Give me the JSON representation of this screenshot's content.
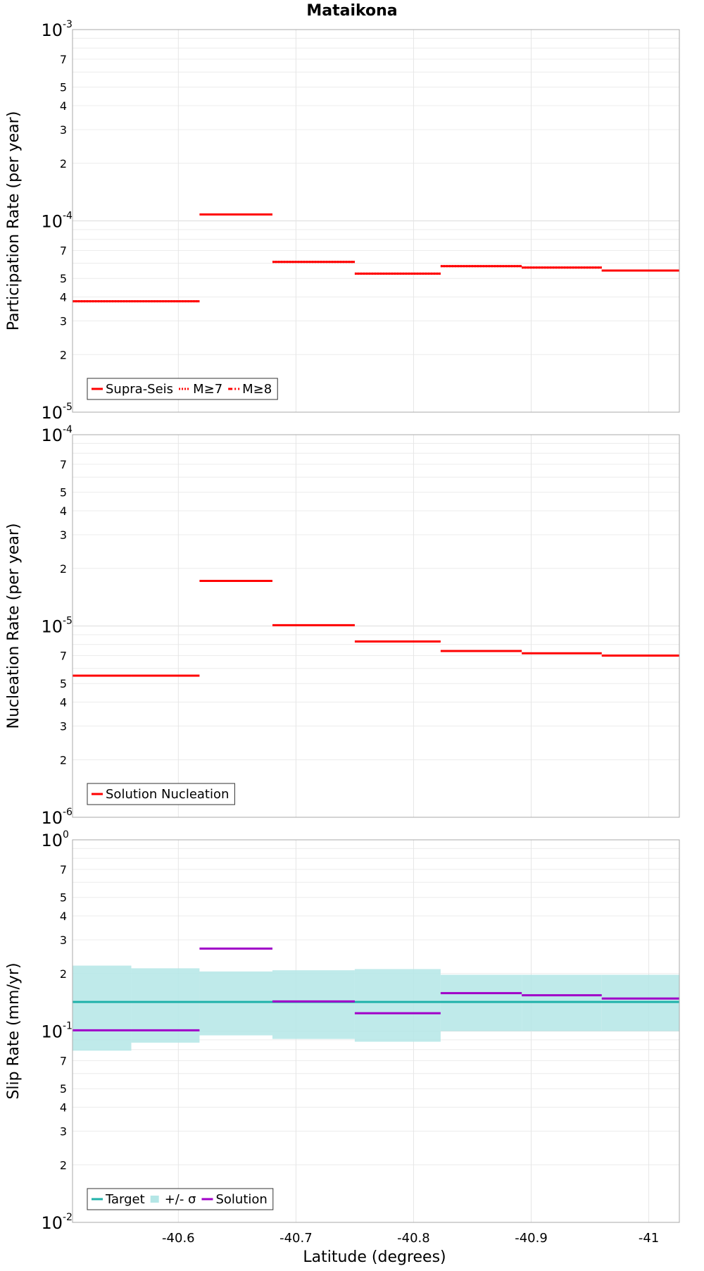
{
  "chart_data": {
    "title": "Mataikona",
    "type": "line",
    "xlabel": "Latitude (degrees)",
    "xlim": [
      -40.51,
      -41.026
    ],
    "x_ticks": [
      -40.6,
      -40.7,
      -40.8,
      -40.9,
      -41.0
    ],
    "x_tick_labels": [
      "-40.6",
      "-40.7",
      "-40.8",
      "-40.9",
      "-41"
    ],
    "grid": true,
    "panels": [
      {
        "name": "participation",
        "ylabel": "Participation Rate (per year)",
        "yscale": "log",
        "ylim": [
          1e-05,
          0.001
        ],
        "decades": [
          -5,
          -4,
          -3
        ],
        "legend": {
          "placement": "bottom-left",
          "entries": [
            {
              "label": "Supra-Seis",
              "color": "#ff0000",
              "style": "solid"
            },
            {
              "label": "M≥7",
              "color": "#ff0000",
              "style": "dotted"
            },
            {
              "label": "M≥8",
              "color": "#ff0000",
              "style": "dashdot"
            }
          ]
        },
        "series": [
          {
            "name": "Supra-Seis",
            "type": "step",
            "color": "#ff0000",
            "style": "solid",
            "segments": [
              {
                "x0": -40.51,
                "x1": -40.56,
                "y": 3.8e-05
              },
              {
                "x0": -40.56,
                "x1": -40.618,
                "y": 3.8e-05
              },
              {
                "x0": -40.618,
                "x1": -40.68,
                "y": 0.000108
              },
              {
                "x0": -40.68,
                "x1": -40.75,
                "y": 6.1e-05
              },
              {
                "x0": -40.75,
                "x1": -40.823,
                "y": 5.3e-05
              },
              {
                "x0": -40.823,
                "x1": -40.892,
                "y": 5.8e-05
              },
              {
                "x0": -40.892,
                "x1": -40.96,
                "y": 5.7e-05
              },
              {
                "x0": -40.96,
                "x1": -41.026,
                "y": 5.5e-05
              }
            ]
          },
          {
            "name": "M≥7",
            "type": "step",
            "color": "#ff0000",
            "style": "dotted",
            "segments": [
              {
                "x0": -40.51,
                "x1": -40.56,
                "y": 3.8e-05
              },
              {
                "x0": -40.56,
                "x1": -40.618,
                "y": 3.8e-05
              },
              {
                "x0": -40.68,
                "x1": -40.75,
                "y": 6.1e-05
              },
              {
                "x0": -40.75,
                "x1": -40.823,
                "y": 5.3e-05
              },
              {
                "x0": -40.823,
                "x1": -40.892,
                "y": 5.8e-05
              },
              {
                "x0": -40.892,
                "x1": -40.96,
                "y": 5.7e-05
              },
              {
                "x0": -40.96,
                "x1": -41.026,
                "y": 5.5e-05
              }
            ]
          }
        ]
      },
      {
        "name": "nucleation",
        "ylabel": "Nucleation Rate (per year)",
        "yscale": "log",
        "ylim": [
          1e-06,
          0.0001
        ],
        "decades": [
          -6,
          -5,
          -4
        ],
        "legend": {
          "placement": "bottom-left",
          "entries": [
            {
              "label": "Solution Nucleation",
              "color": "#ff0000",
              "style": "solid"
            }
          ]
        },
        "series": [
          {
            "name": "Solution Nucleation",
            "type": "step",
            "color": "#ff0000",
            "style": "solid",
            "segments": [
              {
                "x0": -40.51,
                "x1": -40.56,
                "y": 5.5e-06
              },
              {
                "x0": -40.56,
                "x1": -40.618,
                "y": 5.5e-06
              },
              {
                "x0": -40.618,
                "x1": -40.68,
                "y": 1.72e-05
              },
              {
                "x0": -40.68,
                "x1": -40.75,
                "y": 1.01e-05
              },
              {
                "x0": -40.75,
                "x1": -40.823,
                "y": 8.3e-06
              },
              {
                "x0": -40.823,
                "x1": -40.892,
                "y": 7.4e-06
              },
              {
                "x0": -40.892,
                "x1": -40.96,
                "y": 7.2e-06
              },
              {
                "x0": -40.96,
                "x1": -41.026,
                "y": 7e-06
              }
            ]
          }
        ]
      },
      {
        "name": "slip",
        "ylabel": "Slip Rate (mm/yr)",
        "yscale": "log",
        "ylim": [
          0.01,
          1
        ],
        "decades": [
          -2,
          -1,
          0
        ],
        "legend": {
          "placement": "bottom-left",
          "entries": [
            {
              "label": "Target",
              "color": "#20b2aa",
              "style": "solid"
            },
            {
              "label": "+/- σ",
              "color": "#b4e6e6",
              "style": "band"
            },
            {
              "label": "Solution",
              "color": "#a000c8",
              "style": "solid"
            }
          ]
        },
        "bands": [
          {
            "x0": -40.51,
            "x1": -40.56,
            "lo": 0.079,
            "hi": 0.22
          },
          {
            "x0": -40.56,
            "x1": -40.618,
            "lo": 0.087,
            "hi": 0.213
          },
          {
            "x0": -40.618,
            "x1": -40.68,
            "lo": 0.095,
            "hi": 0.205
          },
          {
            "x0": -40.68,
            "x1": -40.75,
            "lo": 0.091,
            "hi": 0.208
          },
          {
            "x0": -40.75,
            "x1": -40.823,
            "lo": 0.088,
            "hi": 0.211
          },
          {
            "x0": -40.823,
            "x1": -40.892,
            "lo": 0.1,
            "hi": 0.197
          },
          {
            "x0": -40.892,
            "x1": -40.96,
            "lo": 0.1,
            "hi": 0.197
          },
          {
            "x0": -40.96,
            "x1": -41.026,
            "lo": 0.1,
            "hi": 0.197
          }
        ],
        "series": [
          {
            "name": "Target",
            "type": "step",
            "color": "#20b2aa",
            "style": "solid",
            "segments": [
              {
                "x0": -40.51,
                "x1": -41.026,
                "y": 0.142
              }
            ]
          },
          {
            "name": "Solution",
            "type": "step",
            "color": "#a000c8",
            "style": "solid",
            "segments": [
              {
                "x0": -40.51,
                "x1": -40.56,
                "y": 0.101
              },
              {
                "x0": -40.56,
                "x1": -40.618,
                "y": 0.101
              },
              {
                "x0": -40.618,
                "x1": -40.68,
                "y": 0.27
              },
              {
                "x0": -40.68,
                "x1": -40.75,
                "y": 0.143
              },
              {
                "x0": -40.75,
                "x1": -40.823,
                "y": 0.124
              },
              {
                "x0": -40.823,
                "x1": -40.892,
                "y": 0.158
              },
              {
                "x0": -40.892,
                "x1": -40.96,
                "y": 0.154
              },
              {
                "x0": -40.96,
                "x1": -41.026,
                "y": 0.148
              }
            ]
          }
        ]
      }
    ]
  }
}
